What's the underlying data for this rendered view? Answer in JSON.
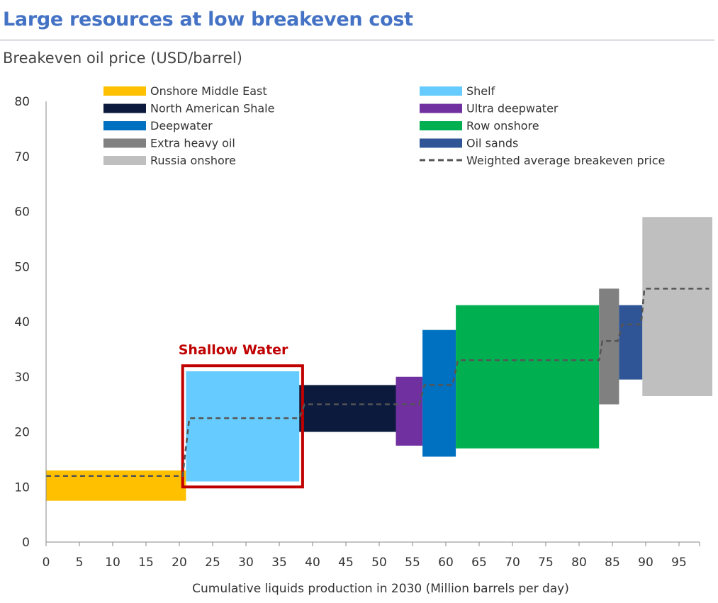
{
  "header": {
    "title": "Large resources at low breakeven cost",
    "subtitle": "Breakeven oil price (USD/barrel)"
  },
  "chart_data": {
    "type": "bar",
    "subtype": "cost-curve",
    "xlabel": "Cumulative liquids production in 2030 (Million barrels per day)",
    "ylabel": "Breakeven oil price (USD/barrel)",
    "xlim": [
      0,
      100
    ],
    "ylim": [
      0,
      80
    ],
    "x_ticks": [
      0,
      5,
      10,
      15,
      20,
      25,
      30,
      35,
      40,
      45,
      50,
      55,
      60,
      65,
      70,
      75,
      80,
      85,
      90,
      95
    ],
    "y_ticks": [
      0,
      10,
      20,
      30,
      40,
      50,
      60,
      70,
      80
    ],
    "grid": false,
    "legend_position": "top",
    "series": [
      {
        "name": "Onshore Middle East",
        "color": "#ffc000",
        "x0": 0,
        "x1": 21,
        "low": 7.5,
        "high": 13
      },
      {
        "name": "Shelf",
        "color": "#66ccff",
        "x0": 21,
        "x1": 38,
        "low": 11,
        "high": 31
      },
      {
        "name": "North American Shale",
        "color": "#0b1a3d",
        "x0": 38,
        "x1": 52.5,
        "low": 20,
        "high": 28.5
      },
      {
        "name": "Ultra deepwater",
        "color": "#7030a0",
        "x0": 52.5,
        "x1": 56.5,
        "low": 17.5,
        "high": 30
      },
      {
        "name": "Deepwater",
        "color": "#0070c0",
        "x0": 56.5,
        "x1": 61.5,
        "low": 15.5,
        "high": 38.5
      },
      {
        "name": "Row onshore",
        "color": "#00b050",
        "x0": 61.5,
        "x1": 83,
        "low": 17,
        "high": 43
      },
      {
        "name": "Extra heavy oil",
        "color": "#808080",
        "x0": 83,
        "x1": 86,
        "low": 25,
        "high": 46
      },
      {
        "name": "Oil sands",
        "color": "#2f5597",
        "x0": 86,
        "x1": 89.5,
        "low": 29.5,
        "high": 43
      },
      {
        "name": "Russia onshore",
        "color": "#bfbfbf",
        "x0": 89.5,
        "x1": 100,
        "low": 26.5,
        "high": 59
      }
    ],
    "weighted_average": {
      "name": "Weighted average breakeven price",
      "color": "#555555",
      "points": [
        [
          0,
          12
        ],
        [
          20.5,
          12
        ],
        [
          21.5,
          22.5
        ],
        [
          38,
          22.5
        ],
        [
          38.8,
          25
        ],
        [
          56,
          25
        ],
        [
          56.8,
          28.5
        ],
        [
          61,
          28.5
        ],
        [
          61.8,
          33
        ],
        [
          83,
          33
        ],
        [
          83.5,
          36.5
        ],
        [
          85.8,
          36.5
        ],
        [
          86.5,
          39.5
        ],
        [
          89.3,
          39.5
        ],
        [
          89.8,
          46
        ],
        [
          99.5,
          46
        ]
      ]
    },
    "annotation": {
      "text": "Shallow Water",
      "color": "#c00000",
      "x0": 20.5,
      "x1": 38.5,
      "y0": 10,
      "y1": 32
    },
    "legend": [
      {
        "label": "Onshore Middle East",
        "color": "#ffc000",
        "kind": "box"
      },
      {
        "label": "Shelf",
        "color": "#66ccff",
        "kind": "box"
      },
      {
        "label": "North American Shale",
        "color": "#0b1a3d",
        "kind": "box"
      },
      {
        "label": "Ultra deepwater",
        "color": "#7030a0",
        "kind": "box"
      },
      {
        "label": "Deepwater",
        "color": "#0070c0",
        "kind": "box"
      },
      {
        "label": "Row onshore",
        "color": "#00b050",
        "kind": "box"
      },
      {
        "label": "Extra heavy oil",
        "color": "#808080",
        "kind": "box"
      },
      {
        "label": "Oil sands",
        "color": "#2f5597",
        "kind": "box"
      },
      {
        "label": "Russia onshore",
        "color": "#bfbfbf",
        "kind": "box"
      },
      {
        "label": "Weighted average breakeven price",
        "color": "#555555",
        "kind": "dash"
      }
    ]
  }
}
